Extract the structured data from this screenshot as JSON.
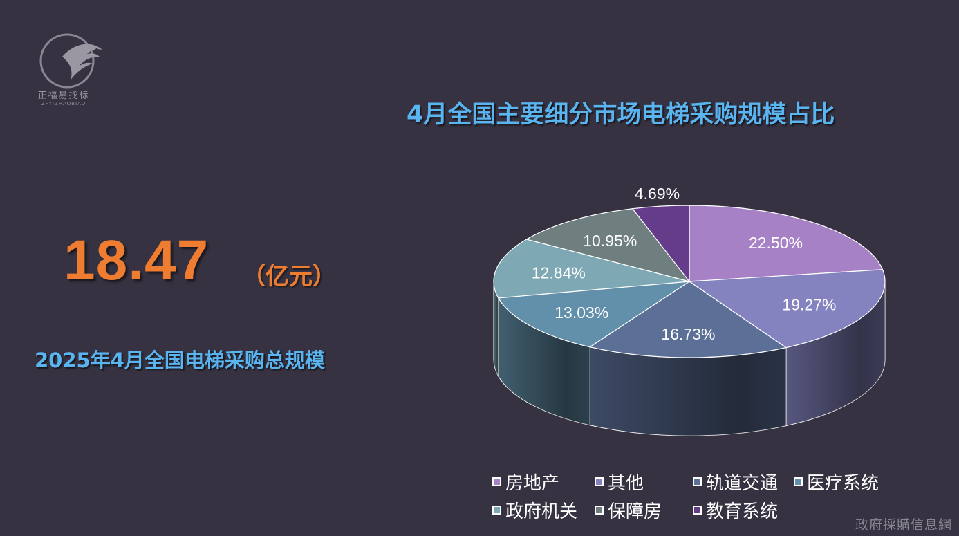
{
  "logo": {
    "name": "正福易找标",
    "sub": "ZFYIZHAOBIAO"
  },
  "headline": {
    "value": "18.47",
    "unit": "（亿元）",
    "caption": "2025年4月全国电梯采购总规模"
  },
  "chart_data": {
    "type": "pie",
    "title": "4月全国主要细分市场电梯采购规模占比",
    "legend_position": "bottom",
    "slices": [
      {
        "name": "房地产",
        "value": 22.5,
        "label": "22.50%",
        "color": "#a781c6"
      },
      {
        "name": "其他",
        "value": 19.27,
        "label": "19.27%",
        "color": "#8483bf"
      },
      {
        "name": "轨道交通",
        "value": 16.73,
        "label": "16.73%",
        "color": "#5b6f97"
      },
      {
        "name": "医疗系统",
        "value": 13.03,
        "label": "13.03%",
        "color": "#628fa9"
      },
      {
        "name": "政府机关",
        "value": 12.84,
        "label": "12.84%",
        "color": "#7ea8b3"
      },
      {
        "name": "保障房",
        "value": 10.95,
        "label": "10.95%",
        "color": "#6f7f7f"
      },
      {
        "name": "教育系统",
        "value": 4.69,
        "label": "4.69%",
        "color": "#643c8a"
      }
    ]
  },
  "watermark": "政府採購信息網"
}
